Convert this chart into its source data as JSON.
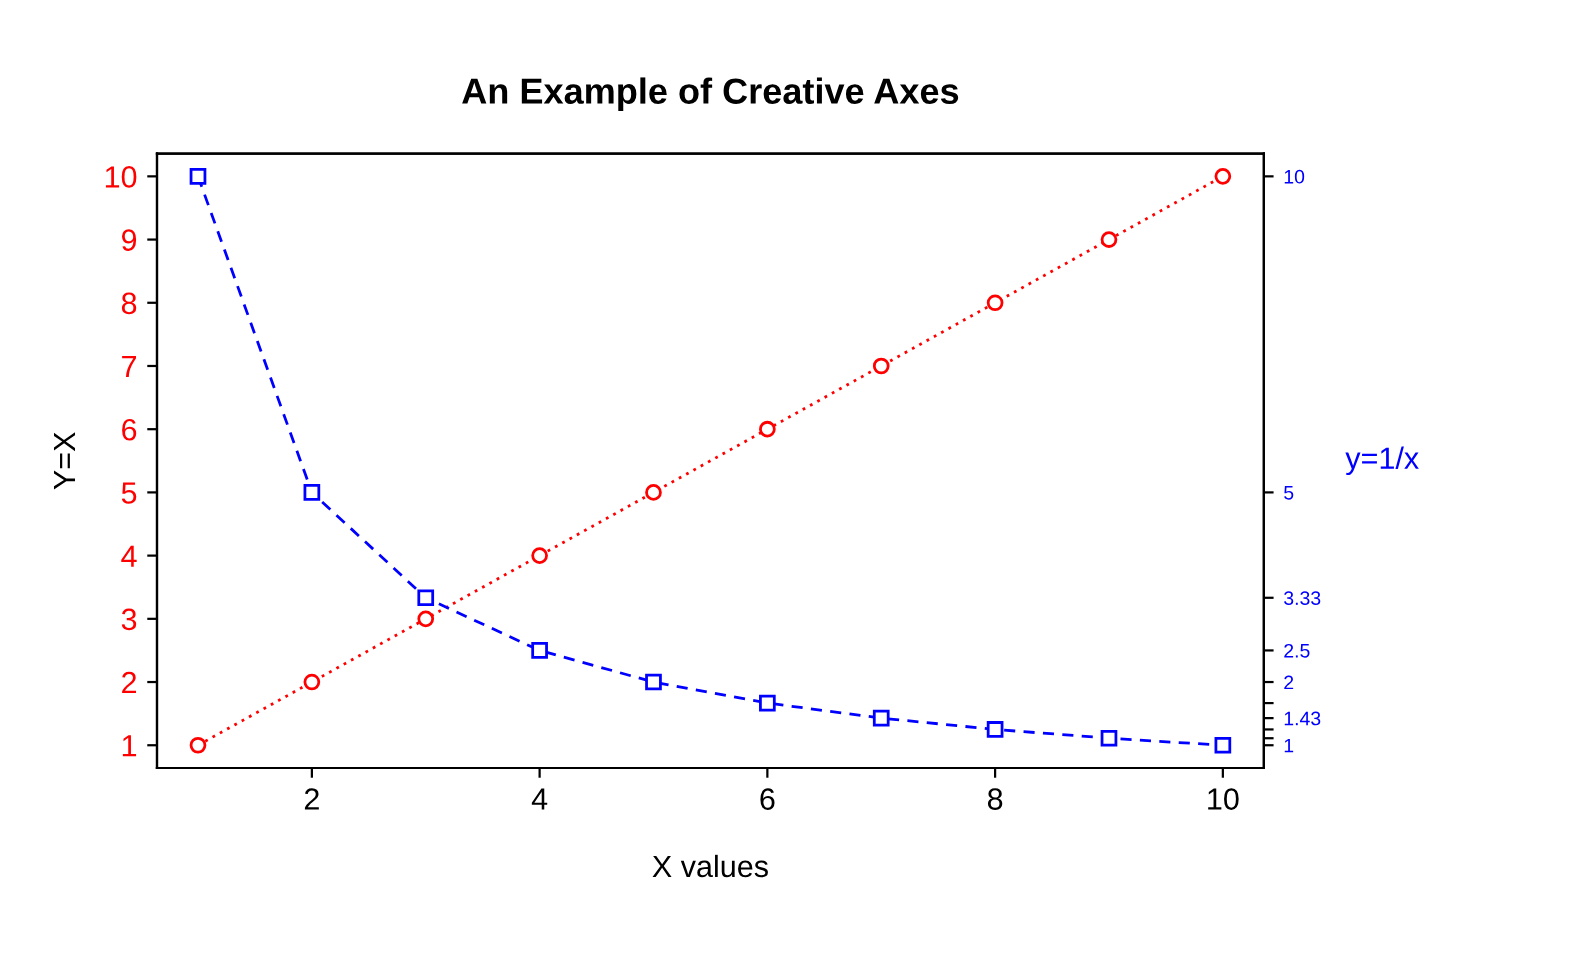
{
  "chart_data": {
    "type": "line",
    "title": "An Example of Creative Axes",
    "xlabel": "X values",
    "ylabel": "Y=X",
    "y2label": "y=1/x",
    "x": [
      1,
      2,
      3,
      4,
      5,
      6,
      7,
      8,
      9,
      10
    ],
    "series": [
      {
        "color": "#ff0000",
        "marker": "circle",
        "line_style": "dotted",
        "values": [
          1,
          2,
          3,
          4,
          5,
          6,
          7,
          8,
          9,
          10
        ]
      },
      {
        "color": "#0000ff",
        "marker": "square",
        "line_style": "dashed",
        "axis": "y2",
        "values": [
          10,
          5,
          3.333,
          2.5,
          2,
          1.667,
          1.429,
          1.25,
          1.111,
          1
        ]
      }
    ],
    "xlim": [
      0.64,
      10.36
    ],
    "xticks": [
      2,
      4,
      6,
      8,
      10
    ],
    "ylim": [
      0.64,
      10.36
    ],
    "yticks": [
      1,
      2,
      3,
      4,
      5,
      6,
      7,
      8,
      9,
      10
    ],
    "y2lim": [
      0.64,
      10.36
    ],
    "y2ticks": [
      10,
      5,
      {
        "value": 3.333,
        "label": "3.33"
      },
      2.5,
      2,
      {
        "value": 1.667,
        "label": null
      },
      {
        "value": 1.429,
        "label": "1.43"
      },
      {
        "value": 1.25,
        "label": null
      },
      {
        "value": 1.111,
        "label": null
      },
      1
    ],
    "grid": false,
    "legend": false
  }
}
